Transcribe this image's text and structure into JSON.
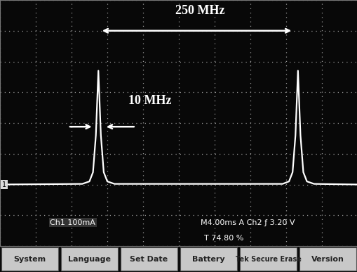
{
  "chart_data": {
    "type": "line",
    "x": [
      0,
      2.3,
      2.5,
      2.6,
      2.68,
      2.75,
      2.82,
      2.9,
      3.0,
      3.2,
      7.9,
      8.08,
      8.18,
      8.26,
      8.33,
      8.4,
      8.48,
      8.58,
      8.78,
      10
    ],
    "values": [
      2.0,
      2.02,
      2.1,
      2.4,
      3.6,
      5.7,
      3.6,
      2.4,
      2.1,
      2.02,
      2.02,
      2.1,
      2.4,
      3.6,
      5.7,
      3.6,
      2.4,
      2.1,
      2.02,
      2.0
    ],
    "color": "#ffffff",
    "xlim": [
      0,
      10
    ],
    "ylim": [
      0,
      8
    ],
    "xticks": [
      0,
      1,
      2,
      3,
      4,
      5,
      6,
      7,
      8,
      9,
      10
    ],
    "yticks": [
      0,
      1,
      2,
      3,
      4,
      5,
      6,
      7,
      8
    ],
    "grid": true,
    "tick_labels": false,
    "annotations": [
      "250 MHz",
      "10 MHz"
    ],
    "channel_marker": "1",
    "status": [
      "Ch1 100mA",
      "M4.00ms A Ch2 ƒ 3.20 V",
      "T 74.80 %"
    ],
    "menu": [
      "System",
      "Language",
      "Set Date",
      "Battery",
      "Tek Secure Erase",
      "Version"
    ]
  }
}
